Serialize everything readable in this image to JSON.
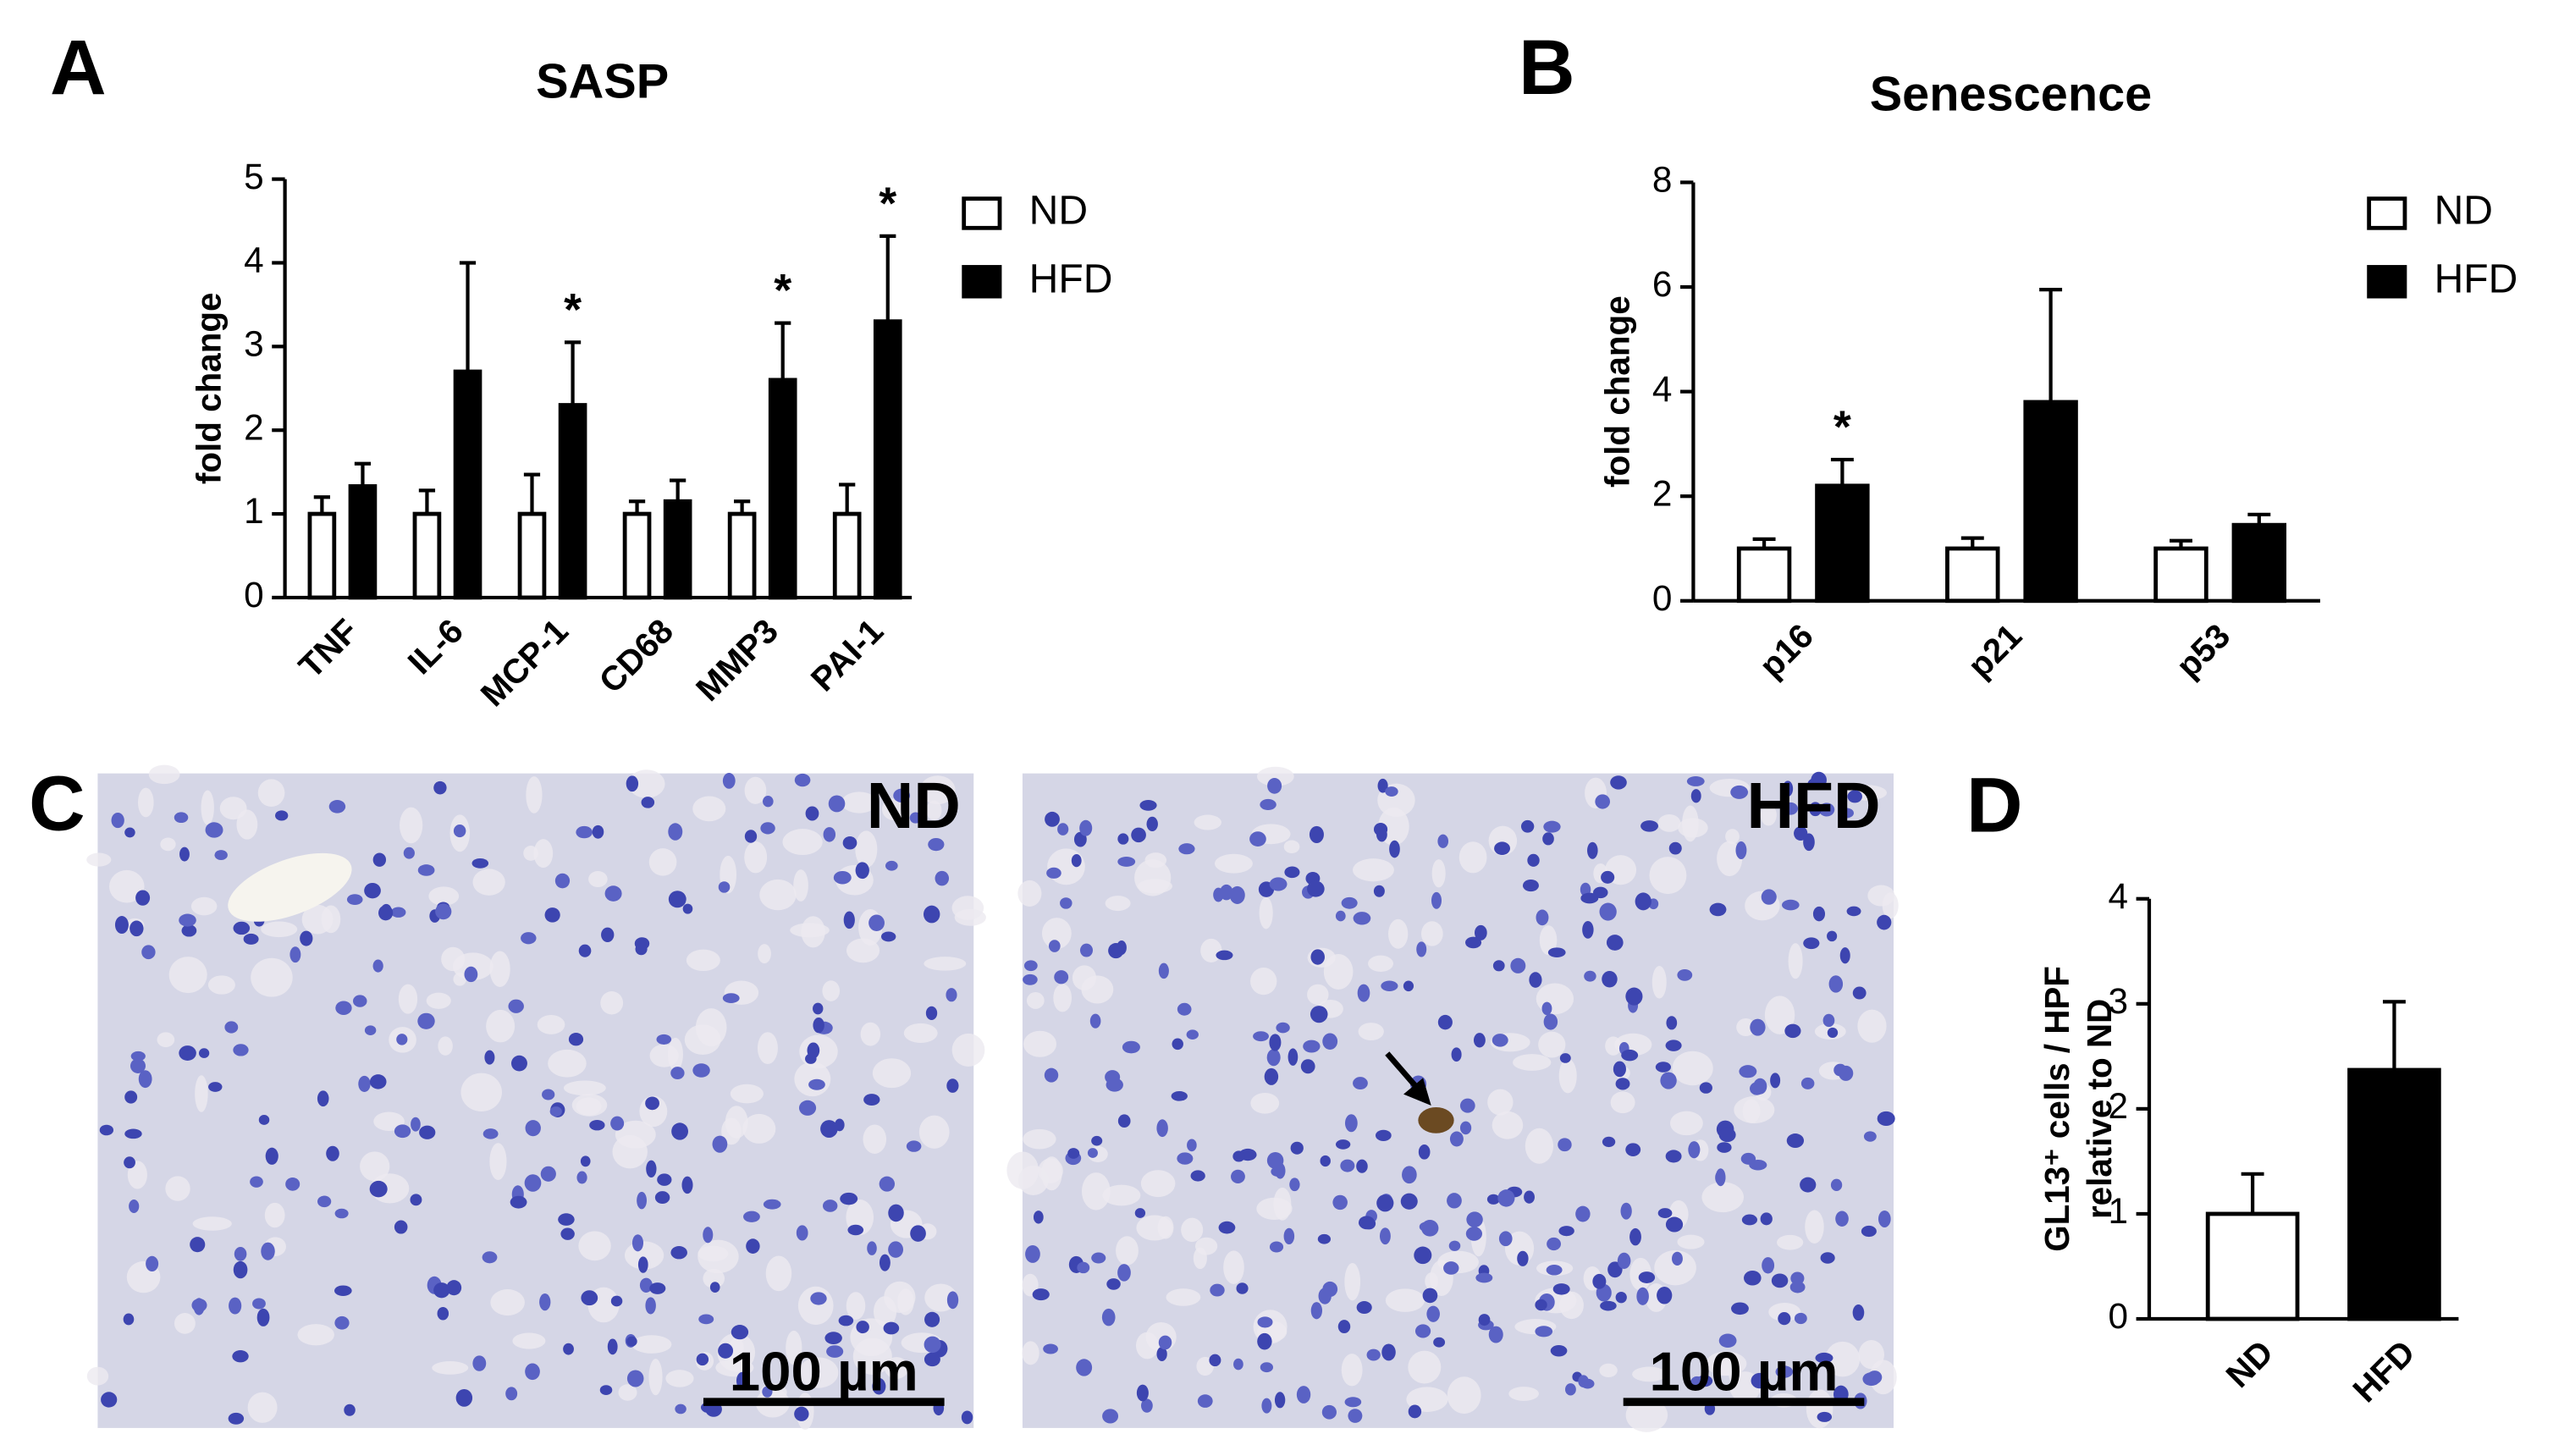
{
  "chart_data": [
    {
      "type": "bar",
      "panel": "A",
      "title": "SASP",
      "y_label": "fold change",
      "categories": [
        "TNF",
        "IL-6",
        "MCP-1",
        "CD68",
        "MMP3",
        "PAI-1"
      ],
      "series": [
        {
          "name": "ND",
          "color": "#ffffff",
          "values": [
            1,
            1,
            1,
            1,
            1,
            1
          ],
          "errors": [
            0.2,
            0.28,
            0.47,
            0.15,
            0.15,
            0.35
          ]
        },
        {
          "name": "HFD",
          "color": "#000000",
          "values": [
            1.33,
            2.7,
            2.3,
            1.15,
            2.6,
            3.3
          ],
          "errors": [
            0.27,
            1.3,
            0.75,
            0.25,
            0.68,
            1.02
          ],
          "significance": [
            null,
            null,
            "*",
            null,
            "*",
            "*"
          ]
        }
      ],
      "ylim": [
        0,
        5
      ],
      "yticks": [
        0,
        1,
        2,
        3,
        4,
        5
      ],
      "legend": true
    },
    {
      "type": "bar",
      "panel": "B",
      "title": "Senescence",
      "y_label": "fold change",
      "categories": [
        "p16",
        "p21",
        "p53"
      ],
      "series": [
        {
          "name": "ND",
          "color": "#ffffff",
          "values": [
            1,
            1,
            1
          ],
          "errors": [
            0.18,
            0.2,
            0.15
          ]
        },
        {
          "name": "HFD",
          "color": "#000000",
          "values": [
            2.2,
            3.8,
            1.45
          ],
          "errors": [
            0.5,
            2.15,
            0.2
          ],
          "significance": [
            "*",
            null,
            null
          ]
        }
      ],
      "ylim": [
        0,
        8
      ],
      "yticks": [
        0,
        2,
        4,
        6,
        8
      ],
      "legend": true
    },
    {
      "type": "bar",
      "panel": "D",
      "y_label": [
        "GL13⁺ cells / HPF",
        "relative to ND"
      ],
      "categories": [
        "ND",
        "HFD"
      ],
      "values": [
        1,
        2.37
      ],
      "errors": [
        0.38,
        0.65
      ],
      "colors": [
        "#ffffff",
        "#000000"
      ],
      "ylim": [
        0,
        4
      ],
      "yticks": [
        0,
        1,
        2,
        3,
        4
      ],
      "legend": false
    }
  ],
  "micrographs": {
    "panel": "C",
    "images": [
      {
        "label": "ND",
        "scale_bar": "100 µm"
      },
      {
        "label": "HFD",
        "scale_bar": "100 µm"
      }
    ]
  }
}
